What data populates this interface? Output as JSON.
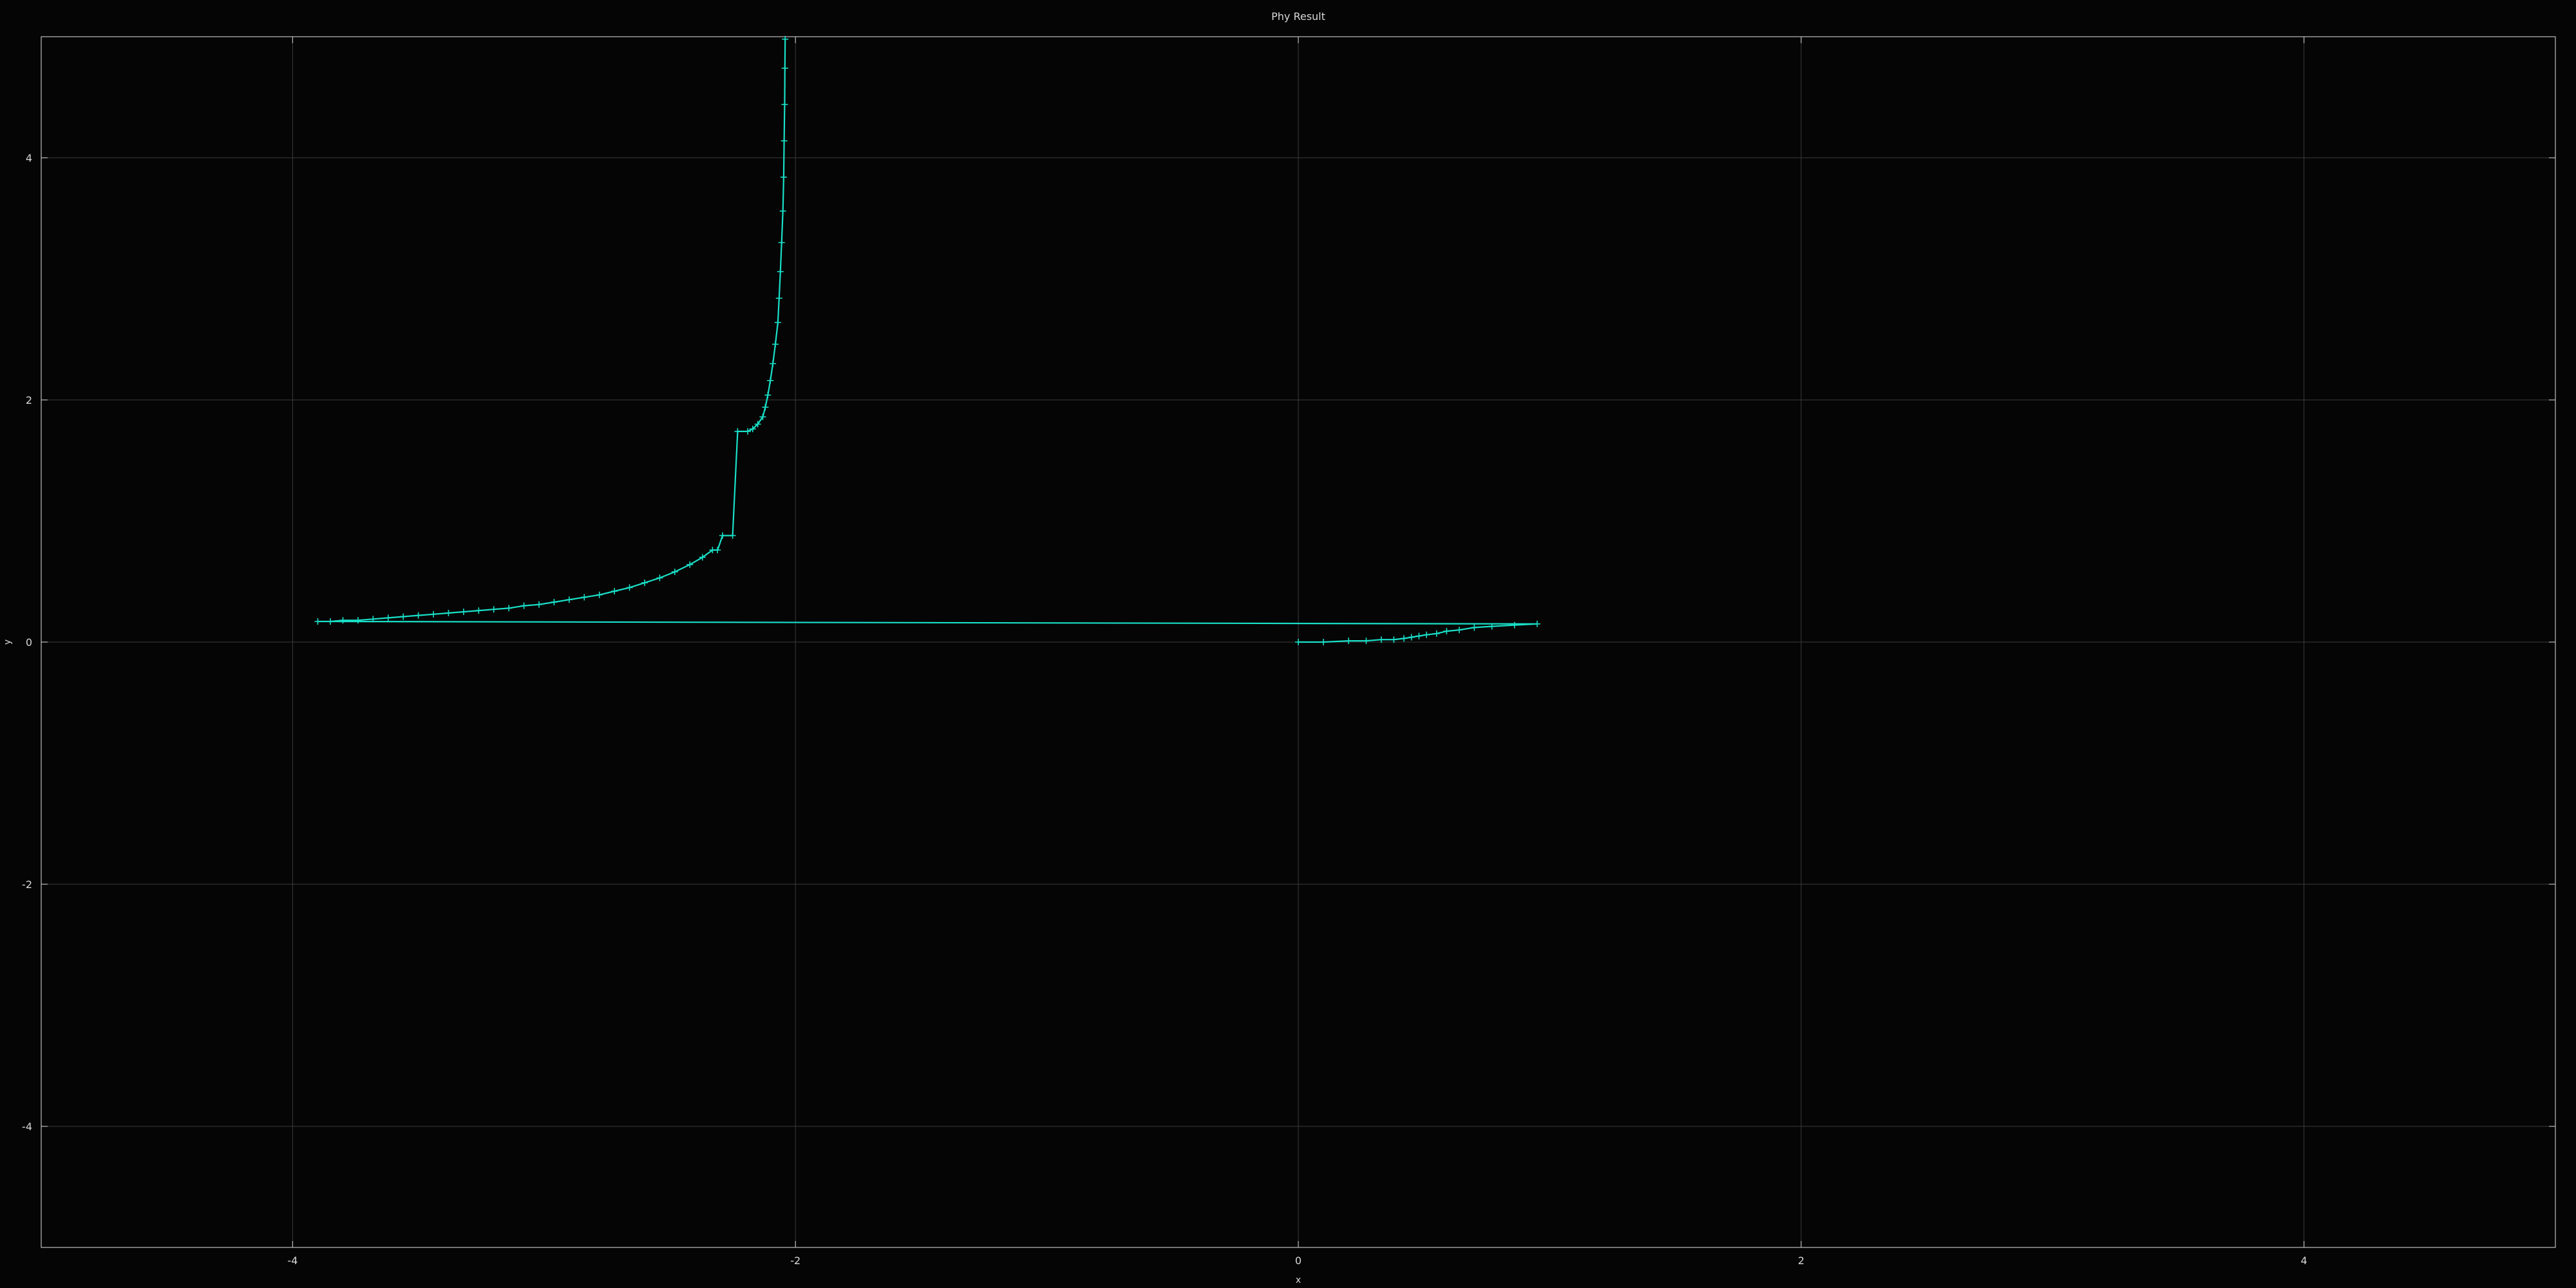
{
  "colors": {
    "background": "#050505",
    "series": "#19e0c8",
    "grid": "#3a3a3a",
    "frame": "#bdbdbd",
    "text": "#d8d8d8"
  },
  "chart_data": {
    "type": "line",
    "title": "Phy Result",
    "xlabel": "x",
    "ylabel": "y",
    "xlim": [
      -5,
      5
    ],
    "ylim": [
      -5,
      5
    ],
    "grid": true,
    "legend": "none",
    "xticks": [
      -4,
      -2,
      0,
      2,
      4
    ],
    "yticks": [
      -4,
      -2,
      0,
      2,
      4
    ],
    "xtick_labels": [
      "-4",
      "-2",
      "0",
      "2",
      "4"
    ],
    "ytick_labels": [
      "-4",
      "-2",
      "0",
      "2",
      "4"
    ],
    "series": [
      {
        "markers": "plus",
        "points": [
          [
            0.0,
            0.0
          ],
          [
            0.1,
            0.0
          ],
          [
            0.2,
            0.01
          ],
          [
            0.27,
            0.01
          ],
          [
            0.33,
            0.02
          ],
          [
            0.38,
            0.02
          ],
          [
            0.42,
            0.03
          ],
          [
            0.45,
            0.04
          ],
          [
            0.48,
            0.05
          ],
          [
            0.51,
            0.06
          ],
          [
            0.55,
            0.07
          ],
          [
            0.59,
            0.09
          ],
          [
            0.64,
            0.1
          ],
          [
            0.7,
            0.12
          ],
          [
            0.77,
            0.13
          ],
          [
            0.86,
            0.14
          ],
          [
            0.95,
            0.15
          ],
          [
            -3.9,
            0.17
          ],
          [
            -3.85,
            0.17
          ],
          [
            -3.8,
            0.18
          ],
          [
            -3.74,
            0.18
          ],
          [
            -3.68,
            0.19
          ],
          [
            -3.62,
            0.2
          ],
          [
            -3.56,
            0.21
          ],
          [
            -3.5,
            0.22
          ],
          [
            -3.44,
            0.23
          ],
          [
            -3.38,
            0.24
          ],
          [
            -3.32,
            0.25
          ],
          [
            -3.26,
            0.26
          ],
          [
            -3.2,
            0.27
          ],
          [
            -3.14,
            0.28
          ],
          [
            -3.08,
            0.3
          ],
          [
            -3.02,
            0.31
          ],
          [
            -2.96,
            0.33
          ],
          [
            -2.9,
            0.35
          ],
          [
            -2.84,
            0.37
          ],
          [
            -2.78,
            0.39
          ],
          [
            -2.72,
            0.42
          ],
          [
            -2.66,
            0.45
          ],
          [
            -2.6,
            0.49
          ],
          [
            -2.54,
            0.53
          ],
          [
            -2.48,
            0.58
          ],
          [
            -2.42,
            0.64
          ],
          [
            -2.37,
            0.7
          ],
          [
            -2.33,
            0.76
          ],
          [
            -2.31,
            0.76
          ],
          [
            -2.29,
            0.88
          ],
          [
            -2.25,
            0.88
          ],
          [
            -2.23,
            1.74
          ],
          [
            -2.19,
            1.74
          ],
          [
            -2.17,
            1.76
          ],
          [
            -2.15,
            1.8
          ],
          [
            -2.13,
            1.86
          ],
          [
            -2.12,
            1.94
          ],
          [
            -2.11,
            2.04
          ],
          [
            -2.1,
            2.16
          ],
          [
            -2.09,
            2.3
          ],
          [
            -2.08,
            2.46
          ],
          [
            -2.07,
            2.64
          ],
          [
            -2.065,
            2.84
          ],
          [
            -2.06,
            3.06
          ],
          [
            -2.055,
            3.3
          ],
          [
            -2.05,
            3.56
          ],
          [
            -2.047,
            3.84
          ],
          [
            -2.045,
            4.14
          ],
          [
            -2.043,
            4.44
          ],
          [
            -2.042,
            4.74
          ],
          [
            -2.041,
            4.98
          ]
        ]
      }
    ]
  }
}
